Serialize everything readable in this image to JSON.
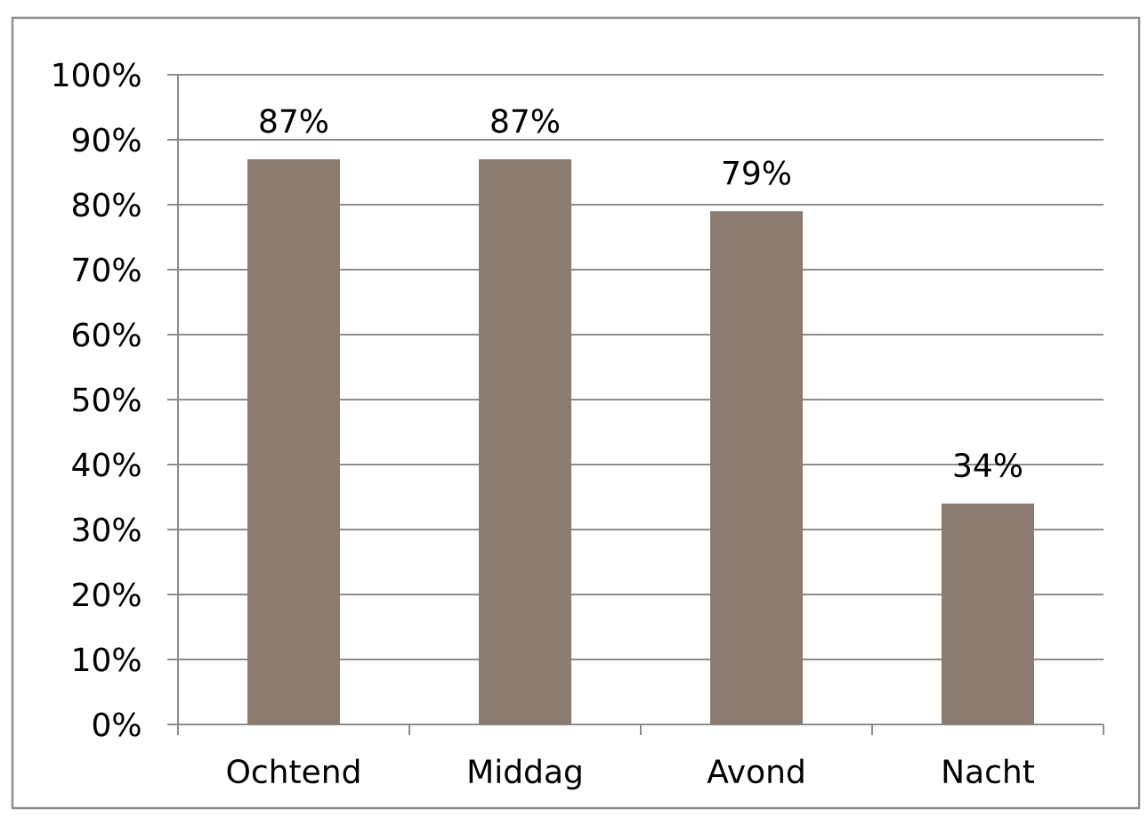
{
  "chart_data": {
    "type": "bar",
    "categories": [
      "Ochtend",
      "Middag",
      "Avond",
      "Nacht"
    ],
    "values": [
      87,
      87,
      79,
      34
    ],
    "value_labels": [
      "87%",
      "87%",
      "79%",
      "34%"
    ],
    "color": "#8b7b70",
    "ylim": [
      0,
      100
    ],
    "yticks": [
      {
        "value": 0,
        "label": "0%"
      },
      {
        "value": 10,
        "label": "10%"
      },
      {
        "value": 20,
        "label": "20%"
      },
      {
        "value": 30,
        "label": "30%"
      },
      {
        "value": 40,
        "label": "40%"
      },
      {
        "value": 50,
        "label": "50%"
      },
      {
        "value": 60,
        "label": "60%"
      },
      {
        "value": 70,
        "label": "70%"
      },
      {
        "value": 80,
        "label": "80%"
      },
      {
        "value": 90,
        "label": "90%"
      },
      {
        "value": 100,
        "label": "100%"
      }
    ],
    "grid": "y"
  }
}
